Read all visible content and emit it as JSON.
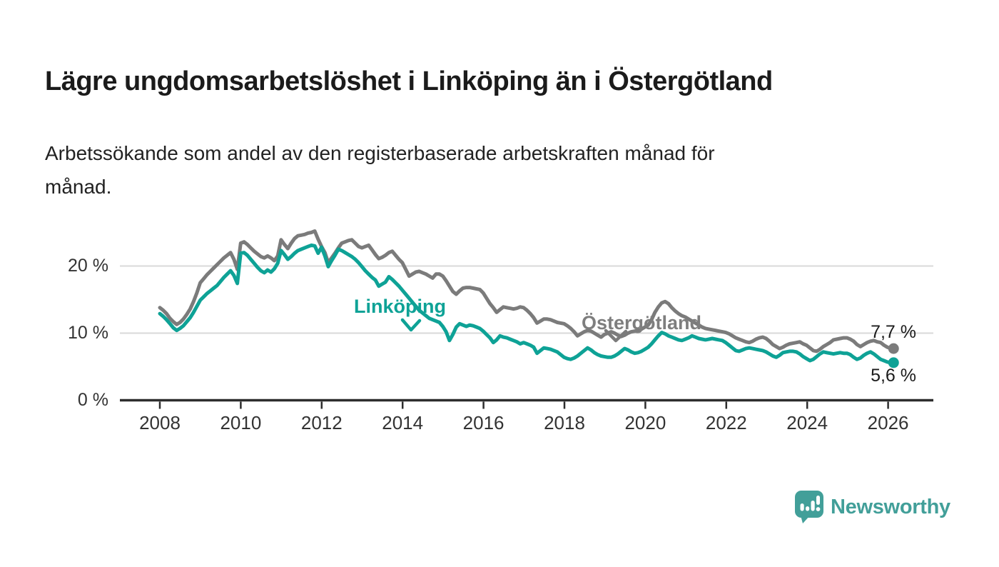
{
  "title": "Lägre ungdomsarbetslöshet i Linköping än i Östergötland",
  "subtitle": "Arbetssökande som andel av den registerbaserade arbetskraften månad för\nmånad.",
  "colors": {
    "linkoping_teal": "#0ea296",
    "ostergotland_gray": "#7b7b7b",
    "gridline": "#d9d9d9",
    "axis": "#2d2d2d",
    "logo_teal": "#429f99"
  },
  "chart_data": {
    "type": "line",
    "unit": "%",
    "x_range": {
      "start": "2008-01",
      "end": "2026-02",
      "interval": "monthly"
    },
    "x_tick_labels": [
      "2008",
      "2010",
      "2012",
      "2014",
      "2016",
      "2018",
      "2020",
      "2022",
      "2024",
      "2026"
    ],
    "y_ticks": [
      {
        "label": "0 %",
        "value": 0
      },
      {
        "label": "10 %",
        "value": 10
      },
      {
        "label": "20 %",
        "value": 20
      }
    ],
    "ylim": [
      0,
      27
    ],
    "grid": "horizontal",
    "legend": "inline-labels-with-arrows",
    "series": [
      {
        "name": "Linköping",
        "color": "#0ea296",
        "end_label": "5,6 %",
        "end_value": 5.6,
        "values": [
          12.9,
          12.5,
          12.0,
          11.4,
          10.8,
          10.4,
          10.7,
          11.1,
          11.7,
          12.3,
          13.1,
          14.0,
          14.9,
          15.4,
          15.9,
          16.3,
          16.7,
          17.1,
          17.7,
          18.3,
          18.8,
          19.3,
          18.6,
          17.4,
          21.9,
          22.0,
          21.6,
          21.0,
          20.4,
          19.8,
          19.3,
          19.0,
          19.4,
          19.1,
          19.6,
          20.4,
          22.3,
          21.7,
          21.0,
          21.4,
          21.9,
          22.3,
          22.5,
          22.7,
          22.9,
          23.1,
          23.0,
          21.9,
          22.8,
          21.5,
          19.9,
          20.8,
          21.6,
          22.5,
          22.3,
          22.0,
          21.7,
          21.4,
          21.0,
          20.5,
          19.9,
          19.3,
          18.8,
          18.3,
          17.9,
          17.0,
          17.3,
          17.6,
          18.4,
          18.0,
          17.5,
          17.0,
          16.4,
          15.8,
          15.2,
          14.6,
          14.0,
          13.4,
          13.0,
          12.6,
          12.2,
          12.0,
          11.8,
          11.6,
          11.0,
          10.2,
          8.9,
          9.8,
          10.9,
          11.4,
          11.2,
          11.0,
          11.2,
          11.1,
          10.9,
          10.7,
          10.3,
          9.8,
          9.3,
          8.6,
          9.0,
          9.6,
          9.4,
          9.3,
          9.1,
          8.9,
          8.7,
          8.4,
          8.6,
          8.4,
          8.2,
          7.9,
          7.0,
          7.4,
          7.8,
          7.7,
          7.6,
          7.4,
          7.2,
          6.8,
          6.4,
          6.2,
          6.1,
          6.3,
          6.6,
          7.0,
          7.4,
          7.8,
          7.5,
          7.1,
          6.8,
          6.6,
          6.5,
          6.4,
          6.4,
          6.6,
          6.9,
          7.3,
          7.7,
          7.5,
          7.2,
          7.0,
          7.1,
          7.3,
          7.6,
          7.9,
          8.4,
          9.0,
          9.6,
          10.1,
          9.9,
          9.6,
          9.4,
          9.2,
          9.0,
          8.9,
          9.1,
          9.3,
          9.6,
          9.4,
          9.2,
          9.1,
          9.0,
          9.1,
          9.2,
          9.1,
          9.0,
          8.9,
          8.6,
          8.2,
          7.8,
          7.4,
          7.3,
          7.5,
          7.7,
          7.8,
          7.7,
          7.6,
          7.5,
          7.4,
          7.2,
          6.9,
          6.6,
          6.4,
          6.7,
          7.1,
          7.2,
          7.3,
          7.3,
          7.2,
          6.9,
          6.5,
          6.2,
          5.9,
          6.1,
          6.5,
          6.9,
          7.2,
          7.1,
          7.0,
          6.9,
          7.0,
          7.1,
          7.0,
          7.0,
          6.8,
          6.4,
          6.1,
          6.3,
          6.7,
          7.0,
          7.2,
          6.9,
          6.5,
          6.1,
          5.9,
          5.7,
          5.6
        ]
      },
      {
        "name": "Östergötland",
        "color": "#7b7b7b",
        "end_label": "7,7 %",
        "end_value": 7.7,
        "values": [
          13.8,
          13.4,
          12.9,
          12.2,
          11.7,
          11.3,
          11.6,
          12.1,
          12.8,
          13.6,
          14.7,
          16.0,
          17.5,
          18.1,
          18.7,
          19.2,
          19.7,
          20.2,
          20.7,
          21.2,
          21.6,
          22.0,
          21.0,
          19.5,
          23.4,
          23.6,
          23.2,
          22.7,
          22.2,
          21.8,
          21.4,
          21.2,
          21.5,
          21.2,
          20.8,
          21.5,
          23.9,
          23.2,
          22.6,
          23.4,
          24.1,
          24.5,
          24.6,
          24.7,
          24.9,
          25.0,
          25.2,
          24.0,
          22.9,
          22.0,
          20.5,
          21.2,
          21.9,
          22.7,
          23.4,
          23.6,
          23.8,
          23.9,
          23.4,
          22.9,
          22.7,
          22.9,
          23.1,
          22.4,
          21.7,
          21.1,
          21.3,
          21.6,
          22.0,
          22.2,
          21.6,
          21.0,
          20.5,
          19.5,
          18.5,
          18.8,
          19.1,
          19.2,
          19.0,
          18.8,
          18.5,
          18.2,
          18.8,
          18.8,
          18.5,
          17.8,
          17.0,
          16.2,
          15.8,
          16.3,
          16.7,
          16.8,
          16.8,
          16.7,
          16.6,
          16.5,
          16.0,
          15.2,
          14.4,
          13.8,
          13.1,
          13.5,
          13.9,
          13.8,
          13.7,
          13.6,
          13.7,
          13.9,
          13.8,
          13.4,
          12.9,
          12.3,
          11.5,
          11.8,
          12.1,
          12.1,
          12.0,
          11.8,
          11.6,
          11.5,
          11.4,
          11.1,
          10.7,
          10.2,
          9.6,
          9.9,
          10.2,
          10.4,
          10.3,
          10.0,
          9.7,
          9.4,
          9.8,
          10.0,
          10.2,
          10.0,
          9.7,
          9.5,
          9.7,
          10.0,
          10.2,
          10.3,
          10.4,
          10.6,
          10.9,
          11.2,
          12.0,
          13.1,
          13.9,
          14.5,
          14.7,
          14.4,
          13.8,
          13.3,
          12.9,
          12.6,
          12.4,
          12.1,
          11.8,
          11.5,
          11.2,
          10.9,
          10.7,
          10.6,
          10.5,
          10.4,
          10.3,
          10.2,
          10.1,
          9.9,
          9.6,
          9.3,
          9.1,
          8.9,
          8.7,
          8.6,
          8.8,
          9.1,
          9.3,
          9.4,
          9.2,
          8.8,
          8.3,
          8.0,
          7.7,
          7.9,
          8.2,
          8.4,
          8.5,
          8.6,
          8.7,
          8.4,
          8.2,
          7.8,
          7.4,
          7.3,
          7.6,
          8.0,
          8.3,
          8.6,
          9.0,
          9.1,
          9.2,
          9.3,
          9.3,
          9.1,
          8.8,
          8.3,
          8.0,
          8.3,
          8.6,
          8.8,
          8.9,
          8.7,
          8.6,
          8.2,
          7.9,
          7.7
        ]
      }
    ]
  },
  "logo": {
    "text": "Newsworthy",
    "icon": "newsworthy-speech-bubble-bar-chart-icon"
  }
}
